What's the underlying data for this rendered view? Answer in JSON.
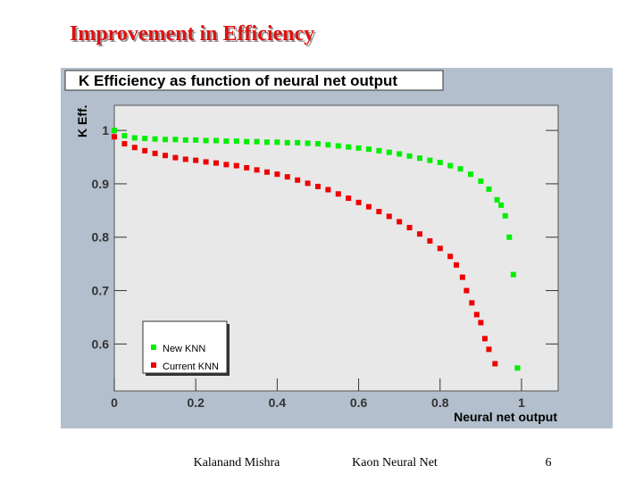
{
  "slide": {
    "title": "Improvement in Efficiency",
    "footer": {
      "author": "Kalanand Mishra",
      "topic": "Kaon Neural Net",
      "page": "6"
    }
  },
  "chart_data": {
    "type": "scatter",
    "title": "K Efficiency as function of neural net output",
    "x_label": "Neural net output",
    "y_label": "K Eff.",
    "xlim": [
      0,
      1.09
    ],
    "ylim": [
      0.512,
      1.047
    ],
    "xticks": [
      0,
      0.2,
      0.4,
      0.6,
      0.8,
      1
    ],
    "yticks": [
      0.6,
      0.7,
      0.8,
      0.9,
      1
    ],
    "legend": "lower left",
    "series": [
      {
        "name": "New KNN",
        "color": "#00ee00",
        "x": [
          0,
          0.025,
          0.05,
          0.075,
          0.1,
          0.125,
          0.15,
          0.175,
          0.2,
          0.225,
          0.25,
          0.275,
          0.3,
          0.325,
          0.35,
          0.375,
          0.4,
          0.425,
          0.45,
          0.475,
          0.5,
          0.525,
          0.55,
          0.575,
          0.6,
          0.625,
          0.65,
          0.675,
          0.7,
          0.725,
          0.75,
          0.775,
          0.8,
          0.825,
          0.85,
          0.875,
          0.9,
          0.92,
          0.94,
          0.95,
          0.96,
          0.97,
          0.98,
          0.99
        ],
        "values": [
          1.0,
          0.99,
          0.986,
          0.985,
          0.984,
          0.983,
          0.983,
          0.982,
          0.982,
          0.981,
          0.981,
          0.98,
          0.98,
          0.979,
          0.979,
          0.978,
          0.978,
          0.977,
          0.977,
          0.976,
          0.975,
          0.973,
          0.971,
          0.969,
          0.967,
          0.965,
          0.962,
          0.959,
          0.956,
          0.952,
          0.948,
          0.944,
          0.94,
          0.934,
          0.928,
          0.918,
          0.905,
          0.89,
          0.87,
          0.86,
          0.84,
          0.8,
          0.73,
          0.555
        ]
      },
      {
        "name": "Current KNN",
        "color": "#ee0000",
        "x": [
          0,
          0.025,
          0.05,
          0.075,
          0.1,
          0.125,
          0.15,
          0.175,
          0.2,
          0.225,
          0.25,
          0.275,
          0.3,
          0.325,
          0.35,
          0.375,
          0.4,
          0.425,
          0.45,
          0.475,
          0.5,
          0.525,
          0.55,
          0.575,
          0.6,
          0.625,
          0.65,
          0.675,
          0.7,
          0.725,
          0.75,
          0.775,
          0.8,
          0.825,
          0.84,
          0.855,
          0.865,
          0.878,
          0.89,
          0.9,
          0.91,
          0.92,
          0.935
        ],
        "values": [
          0.988,
          0.975,
          0.968,
          0.962,
          0.957,
          0.953,
          0.949,
          0.946,
          0.944,
          0.941,
          0.939,
          0.936,
          0.934,
          0.93,
          0.926,
          0.922,
          0.918,
          0.913,
          0.907,
          0.901,
          0.895,
          0.889,
          0.881,
          0.873,
          0.865,
          0.857,
          0.848,
          0.839,
          0.829,
          0.818,
          0.806,
          0.793,
          0.779,
          0.764,
          0.748,
          0.725,
          0.7,
          0.677,
          0.655,
          0.64,
          0.61,
          0.59,
          0.563
        ]
      }
    ]
  }
}
